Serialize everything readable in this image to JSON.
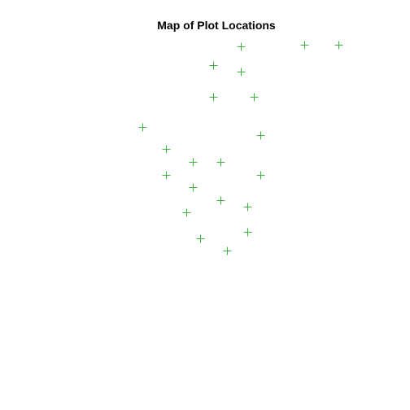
{
  "chart_data": {
    "type": "scatter",
    "title": "Map of Plot Locations",
    "xlabel": "",
    "ylabel": "",
    "axes_visible": false,
    "grid": false,
    "marker": "+",
    "color": "#3cb33c",
    "xlim": [
      0,
      10
    ],
    "ylim": [
      0,
      10
    ],
    "series": [
      {
        "name": "plots",
        "points": [
          {
            "x": 5.7,
            "y": 9.6
          },
          {
            "x": 7.6,
            "y": 9.65
          },
          {
            "x": 8.6,
            "y": 9.65
          },
          {
            "x": 4.9,
            "y": 9.0
          },
          {
            "x": 5.7,
            "y": 8.8
          },
          {
            "x": 4.9,
            "y": 8.0
          },
          {
            "x": 6.1,
            "y": 8.0
          },
          {
            "x": 2.8,
            "y": 7.05
          },
          {
            "x": 6.3,
            "y": 6.8
          },
          {
            "x": 3.5,
            "y": 6.35
          },
          {
            "x": 4.3,
            "y": 5.95
          },
          {
            "x": 5.1,
            "y": 5.95
          },
          {
            "x": 3.5,
            "y": 5.55
          },
          {
            "x": 6.3,
            "y": 5.55
          },
          {
            "x": 4.3,
            "y": 5.15
          },
          {
            "x": 5.1,
            "y": 4.75
          },
          {
            "x": 5.9,
            "y": 4.55
          },
          {
            "x": 4.1,
            "y": 4.35
          },
          {
            "x": 5.9,
            "y": 3.75
          },
          {
            "x": 4.5,
            "y": 3.55
          },
          {
            "x": 5.3,
            "y": 3.15
          }
        ]
      }
    ]
  }
}
